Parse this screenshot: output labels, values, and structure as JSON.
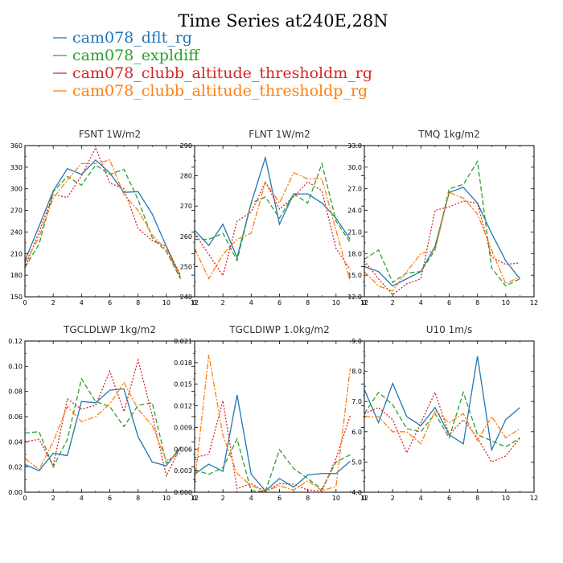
{
  "figure": {
    "title": "Time Series at240E,28N"
  },
  "series_styles": [
    {
      "name": "cam078_dflt_rg",
      "color": "#1f77b4",
      "dash": ""
    },
    {
      "name": "cam078_expldiff",
      "color": "#2ca02c",
      "dash": "6,3"
    },
    {
      "name": "cam078_clubb_altitude_thresholdm_rg",
      "color": "#d62728",
      "dash": "2,2"
    },
    {
      "name": "cam078_clubb_altitude_thresholdp_rg",
      "color": "#ff7f0e",
      "dash": "7,2,2,2"
    }
  ],
  "chart_data": [
    {
      "type": "line",
      "title": "FSNT   1W/m2",
      "x": [
        0,
        1,
        2,
        3,
        4,
        5,
        6,
        7,
        8,
        9,
        10,
        11
      ],
      "xlim": [
        0,
        12
      ],
      "xticks": [
        0,
        2,
        4,
        6,
        8,
        10,
        12
      ],
      "ylim": [
        150,
        360
      ],
      "yticks": [
        150,
        180,
        210,
        240,
        270,
        300,
        330,
        360
      ],
      "ytick_labels": [
        "150",
        "180",
        "210",
        "240",
        "270",
        "300",
        "330",
        "360"
      ],
      "series": [
        {
          "name": "cam078_dflt_rg",
          "values": [
            200,
            248,
            297,
            328,
            320,
            340,
            322,
            295,
            296,
            265,
            220,
            177
          ]
        },
        {
          "name": "cam078_expldiff",
          "values": [
            191,
            223,
            296,
            317,
            305,
            333,
            320,
            327,
            285,
            232,
            213,
            175
          ]
        },
        {
          "name": "cam078_clubb_altitude_thresholdm_rg",
          "values": [
            190,
            240,
            292,
            288,
            318,
            357,
            308,
            300,
            245,
            228,
            220,
            180
          ]
        },
        {
          "name": "cam078_clubb_altitude_thresholdp_rg",
          "values": [
            197,
            233,
            287,
            312,
            335,
            335,
            340,
            292,
            270,
            236,
            215,
            177
          ]
        }
      ]
    },
    {
      "type": "line",
      "title": "FLNT   1W/m2",
      "x": [
        0,
        1,
        2,
        3,
        4,
        5,
        6,
        7,
        8,
        9,
        10,
        11
      ],
      "xlim": [
        0,
        12
      ],
      "xticks": [
        0,
        2,
        4,
        6,
        8,
        10,
        12
      ],
      "ylim": [
        240,
        290
      ],
      "yticks": [
        240,
        250,
        260,
        270,
        280,
        290
      ],
      "ytick_labels": [
        "240",
        "250",
        "260",
        "270",
        "280",
        "290"
      ],
      "series": [
        {
          "name": "cam078_dflt_rg",
          "values": [
            262,
            257,
            264,
            253,
            271,
            286,
            264,
            274,
            274,
            271,
            266,
            259
          ]
        },
        {
          "name": "cam078_expldiff",
          "values": [
            259,
            259,
            261,
            252,
            271,
            273,
            266,
            274,
            271,
            284,
            265,
            258
          ]
        },
        {
          "name": "cam078_clubb_altitude_thresholdm_rg",
          "values": [
            261,
            254,
            247,
            265,
            268,
            278,
            269,
            273,
            278,
            275,
            256,
            249
          ]
        },
        {
          "name": "cam078_clubb_altitude_thresholdp_rg",
          "values": [
            256,
            246,
            254,
            259,
            261,
            278,
            271,
            281,
            279,
            279,
            262,
            245
          ]
        }
      ]
    },
    {
      "type": "line",
      "title": "TMQ   1kg/m2",
      "x": [
        0,
        1,
        2,
        3,
        4,
        5,
        6,
        7,
        8,
        9,
        10,
        11
      ],
      "xlim": [
        0,
        12
      ],
      "xticks": [
        0,
        2,
        4,
        6,
        8,
        10,
        12
      ],
      "ylim": [
        12,
        33
      ],
      "yticks": [
        12,
        15,
        18,
        21,
        24,
        27,
        30,
        33
      ],
      "ytick_labels": [
        "12.0",
        "15.0",
        "18.0",
        "21.0",
        "24.0",
        "27.0",
        "30.0",
        "33.0"
      ],
      "series": [
        {
          "name": "cam078_dflt_rg",
          "values": [
            16.2,
            15.5,
            13.5,
            14.5,
            15.5,
            19,
            26.5,
            27.2,
            25,
            20.8,
            17,
            14.5
          ]
        },
        {
          "name": "cam078_expldiff",
          "values": [
            17.2,
            18.5,
            14,
            15.3,
            15.5,
            18.5,
            27,
            27.6,
            30.8,
            16,
            13.5,
            14.5
          ]
        },
        {
          "name": "cam078_clubb_altitude_thresholdm_rg",
          "values": [
            17,
            14.5,
            12.3,
            13.8,
            14.5,
            24,
            24.5,
            25.3,
            25,
            17.5,
            16.5,
            16.7
          ]
        },
        {
          "name": "cam078_clubb_altitude_thresholdp_rg",
          "values": [
            15.5,
            13.5,
            12.8,
            15.5,
            18,
            18.5,
            26.5,
            25.7,
            23.5,
            18.5,
            13.8,
            14.8
          ]
        }
      ]
    },
    {
      "type": "line",
      "title": "TGCLDLWP   1kg/m2",
      "x": [
        0,
        1,
        2,
        3,
        4,
        5,
        6,
        7,
        8,
        9,
        10,
        11
      ],
      "xlim": [
        0,
        12
      ],
      "xticks": [
        0,
        2,
        4,
        6,
        8,
        10,
        12
      ],
      "ylim": [
        0,
        0.12
      ],
      "yticks": [
        0,
        0.02,
        0.04,
        0.06,
        0.08,
        0.1,
        0.12
      ],
      "ytick_labels": [
        "0.00",
        "0.02",
        "0.04",
        "0.06",
        "0.08",
        "0.10",
        "0.12"
      ],
      "series": [
        {
          "name": "cam078_dflt_rg",
          "values": [
            0.022,
            0.017,
            0.031,
            0.029,
            0.072,
            0.071,
            0.081,
            0.082,
            0.044,
            0.024,
            0.021,
            0.036
          ]
        },
        {
          "name": "cam078_expldiff",
          "values": [
            0.047,
            0.048,
            0.02,
            0.042,
            0.09,
            0.072,
            0.068,
            0.052,
            0.069,
            0.071,
            0.023,
            0.034
          ]
        },
        {
          "name": "cam078_clubb_altitude_thresholdm_rg",
          "values": [
            0.04,
            0.042,
            0.021,
            0.074,
            0.066,
            0.069,
            0.096,
            0.064,
            0.105,
            0.061,
            0.013,
            0.036
          ]
        },
        {
          "name": "cam078_clubb_altitude_thresholdp_rg",
          "values": [
            0.027,
            0.018,
            0.04,
            0.068,
            0.056,
            0.06,
            0.07,
            0.087,
            0.066,
            0.053,
            0.025,
            0.031
          ]
        }
      ]
    },
    {
      "type": "line",
      "title": "TGCLDIWP   1.0kg/m2",
      "x": [
        0,
        1,
        2,
        3,
        4,
        5,
        6,
        7,
        8,
        9,
        10,
        11
      ],
      "xlim": [
        0,
        12
      ],
      "xticks": [
        0,
        2,
        4,
        6,
        8,
        10,
        12
      ],
      "ylim": [
        0,
        0.021
      ],
      "yticks": [
        0,
        0.003,
        0.006,
        0.009,
        0.012,
        0.015,
        0.018,
        0.021
      ],
      "ytick_labels": [
        "0.000",
        "0.003",
        "0.006",
        "0.009",
        "0.012",
        "0.015",
        "0.018",
        "0.021"
      ],
      "series": [
        {
          "name": "cam078_dflt_rg",
          "values": [
            0.0025,
            0.0039,
            0.0029,
            0.0135,
            0.0025,
            0.0002,
            0.0019,
            0.0007,
            0.0024,
            0.0026,
            0.0026,
            0.0043
          ]
        },
        {
          "name": "cam078_expldiff",
          "values": [
            0.0031,
            0.0025,
            0.0034,
            0.0074,
            0.0002,
            0.0001,
            0.0059,
            0.0033,
            0.0019,
            0.0004,
            0.0042,
            0.0052
          ]
        },
        {
          "name": "cam078_clubb_altitude_thresholdm_rg",
          "values": [
            0.0048,
            0.0053,
            0.0127,
            0.0005,
            0.0012,
            0.0001,
            0.0012,
            0.0011,
            0.0003,
            0.0002,
            0.0047,
            0.0106
          ]
        },
        {
          "name": "cam078_clubb_altitude_thresholdp_rg",
          "values": [
            0.0012,
            0.0191,
            0.0079,
            0.0026,
            0.0009,
            0.0001,
            0.0009,
            0.0003,
            0.0016,
            0.0002,
            0.0008,
            0.0172
          ]
        }
      ]
    },
    {
      "type": "line",
      "title": "U10   1m/s",
      "x": [
        0,
        1,
        2,
        3,
        4,
        5,
        6,
        7,
        8,
        9,
        10,
        11
      ],
      "xlim": [
        0,
        12
      ],
      "xticks": [
        0,
        2,
        4,
        6,
        8,
        10,
        12
      ],
      "ylim": [
        4,
        9
      ],
      "yticks": [
        4,
        5,
        6,
        7,
        8,
        9
      ],
      "ytick_labels": [
        "4.0",
        "5.0",
        "6.0",
        "7.0",
        "8.0",
        "9.0"
      ],
      "series": [
        {
          "name": "cam078_dflt_rg",
          "values": [
            7.4,
            6.3,
            7.6,
            6.5,
            6.2,
            6.8,
            5.9,
            5.6,
            8.5,
            5.4,
            6.4,
            6.8
          ]
        },
        {
          "name": "cam078_expldiff",
          "values": [
            6.6,
            7.3,
            6.9,
            6.1,
            6.0,
            6.6,
            5.8,
            7.3,
            5.9,
            5.7,
            5.5,
            5.8
          ]
        },
        {
          "name": "cam078_clubb_altitude_thresholdm_rg",
          "values": [
            6.6,
            6.8,
            6.4,
            5.3,
            6.3,
            7.3,
            5.9,
            6.4,
            5.8,
            5.0,
            5.2,
            5.8
          ]
        },
        {
          "name": "cam078_clubb_altitude_thresholdp_rg",
          "values": [
            6.5,
            6.5,
            6.0,
            6.0,
            5.6,
            6.7,
            6.3,
            6.6,
            5.7,
            6.5,
            5.8,
            6.1
          ]
        }
      ]
    }
  ]
}
